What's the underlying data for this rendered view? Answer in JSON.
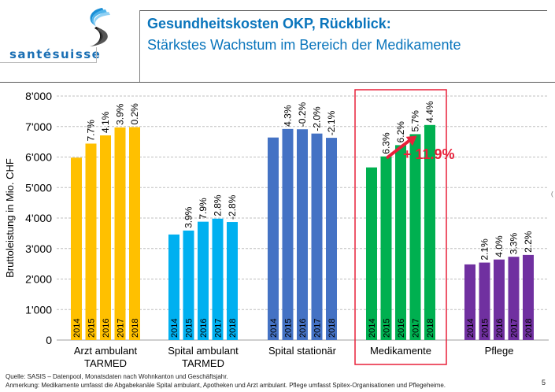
{
  "header": {
    "logo_text": "santésuisse",
    "title": "Gesundheitskosten OKP, Rückblick:",
    "subtitle": "Stärkstes Wachstum im Bereich der Medikamente"
  },
  "chart_data": {
    "type": "bar",
    "title": "Gesundheitskosten OKP, Rückblick",
    "ylabel": "Bruttoleistung in Mio. CHF",
    "xlabel": "",
    "ylim": [
      0,
      8000
    ],
    "yticks": [
      0,
      1000,
      2000,
      3000,
      4000,
      5000,
      6000,
      7000,
      8000
    ],
    "ytick_labels": [
      "0",
      "1'000",
      "2'000",
      "3'000",
      "4'000",
      "5'000",
      "6'000",
      "7'000",
      "8'000"
    ],
    "grid": true,
    "years": [
      "2014",
      "2015",
      "2016",
      "2017",
      "2018"
    ],
    "groups": [
      {
        "name": "Arzt ambulant TARMED",
        "label_lines": [
          "Arzt ambulant",
          "TARMED"
        ],
        "color": "#FFC000",
        "values": [
          5980,
          6440,
          6710,
          6970,
          6980
        ],
        "growth_labels": [
          "",
          "7.7%",
          "4.1%",
          "3.9%",
          "0.2%"
        ]
      },
      {
        "name": "Spital ambulant TARMED",
        "label_lines": [
          "Spital ambulant",
          "TARMED"
        ],
        "color": "#00B0F0",
        "values": [
          3460,
          3590,
          3880,
          3980,
          3870
        ],
        "growth_labels": [
          "",
          "3.9%",
          "7.9%",
          "2.8%",
          "-2.8%"
        ]
      },
      {
        "name": "Spital stationär",
        "label_lines": [
          "Spital stationär"
        ],
        "color": "#4472C4",
        "values": [
          6640,
          6920,
          6910,
          6770,
          6630
        ],
        "growth_labels": [
          "",
          "4.3%",
          "-0.2%",
          "-2.0%",
          "-2.1%"
        ]
      },
      {
        "name": "Medikamente",
        "label_lines": [
          "Medikamente"
        ],
        "color": "#00B050",
        "values": [
          5660,
          6020,
          6390,
          6750,
          7050
        ],
        "growth_labels": [
          "",
          "6.3%",
          "6.2%",
          "5.7%",
          "4.4%"
        ],
        "highlighted": true
      },
      {
        "name": "Pflege",
        "label_lines": [
          "Pflege"
        ],
        "color": "#7030A0",
        "values": [
          2480,
          2540,
          2640,
          2730,
          2790
        ],
        "growth_labels": [
          "",
          "2.1%",
          "4.0%",
          "3.3%",
          "2.2%"
        ]
      }
    ],
    "annotation": {
      "text": "+ 11.9%",
      "color": "#E8203A",
      "group": "Medikamente",
      "arrow_from_year": "2015",
      "arrow_to_year": "2017"
    }
  },
  "footer": {
    "source": "Quelle: SASIS – Datenpool, Monatsdaten nach Wohnkanton und Geschäftsjahr.",
    "note": "Anmerkung: Medikamente umfasst die Abgabekanäle Spital ambulant, Apotheken und Arzt ambulant. Pflege umfasst Spitex-Organisationen und Pflegeheime.",
    "page_number": "5"
  }
}
